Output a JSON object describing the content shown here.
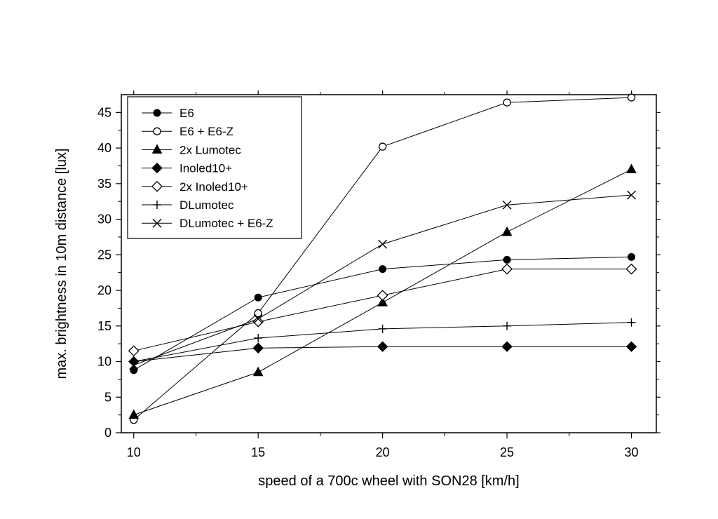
{
  "chart_data": {
    "type": "line",
    "title": "",
    "xlabel": "speed of a 700c wheel with SON28 [km/h]",
    "ylabel": "max. brightness in 10m distance [lux]",
    "xlim": [
      9.5,
      31
    ],
    "ylim": [
      0,
      47.5
    ],
    "xticks": [
      10,
      15,
      20,
      25,
      30
    ],
    "yticks": [
      0,
      5,
      10,
      15,
      20,
      25,
      30,
      35,
      40,
      45
    ],
    "grid": false,
    "legend_position": "top-left",
    "x": [
      10,
      15,
      20,
      25,
      30
    ],
    "series": [
      {
        "name": "E6",
        "marker": "circle-filled",
        "values": [
          8.8,
          19.0,
          23.0,
          24.3,
          24.7
        ]
      },
      {
        "name": "E6 + E6-Z",
        "marker": "circle-open",
        "values": [
          1.8,
          16.8,
          40.2,
          46.4,
          47.1
        ]
      },
      {
        "name": "2x Lumotec",
        "marker": "triangle-filled",
        "values": [
          2.5,
          8.5,
          18.3,
          28.2,
          37.0
        ]
      },
      {
        "name": "Inoled10+",
        "marker": "diamond-filled",
        "values": [
          10.0,
          11.9,
          12.1,
          12.1,
          12.1
        ]
      },
      {
        "name": "2x Inoled10+",
        "marker": "diamond-open",
        "values": [
          11.5,
          15.6,
          19.3,
          23.0,
          23.0
        ]
      },
      {
        "name": "DLumotec",
        "marker": "plus",
        "values": [
          10.0,
          13.3,
          14.6,
          15.0,
          15.5
        ]
      },
      {
        "name": "DLumotec + E6-Z",
        "marker": "cross",
        "values": [
          9.5,
          16.0,
          26.5,
          32.0,
          33.4
        ]
      }
    ]
  }
}
